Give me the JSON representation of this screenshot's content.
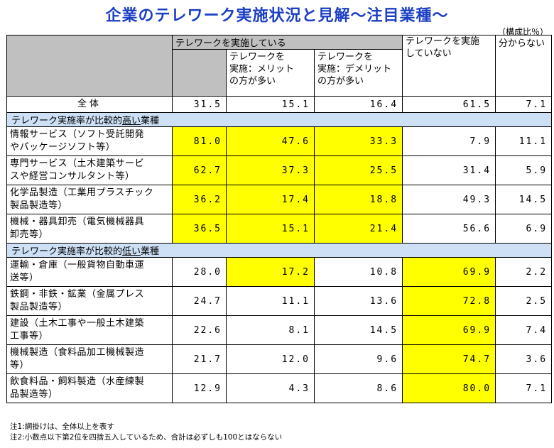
{
  "title": "企業のテレワーク実施状況と見解～注目業種～",
  "unit": "（構成比％）",
  "headers": {
    "implemented": "テレワークを実施している",
    "merit": [
      "テレワークを",
      "実施：メリット",
      "の方が多い"
    ],
    "demerit": [
      "テレワークを",
      "実施：デメリット",
      "の方が多い"
    ],
    "not_implemented": [
      "テレワークを実施",
      "していない"
    ],
    "unknown": "分からない"
  },
  "total": {
    "label": "全体",
    "values": [
      "31.5",
      "15.1",
      "16.4",
      "61.5",
      "7.1"
    ]
  },
  "sections": [
    {
      "title_pre": "テレワーク実施率が比較的",
      "title_u": "高い",
      "title_post": "業種",
      "rows": [
        {
          "label": [
            "情報サービス（ソフト受託開発",
            "やパッケージソフト等）"
          ],
          "values": [
            "81.0",
            "47.6",
            "33.3",
            "7.9",
            "11.1"
          ]
        },
        {
          "label": [
            "専門サービス（土木建築サービ",
            "スや経営コンサルタント等）"
          ],
          "values": [
            "62.7",
            "37.3",
            "25.5",
            "31.4",
            "5.9"
          ]
        },
        {
          "label": [
            "化学品製造（工業用プラスチック",
            "製品製造等）"
          ],
          "values": [
            "36.2",
            "17.4",
            "18.8",
            "49.3",
            "14.5"
          ]
        },
        {
          "label": [
            "機械・器具卸売（電気機械器具",
            "卸売等）"
          ],
          "values": [
            "36.5",
            "15.1",
            "21.4",
            "56.6",
            "6.9"
          ]
        }
      ]
    },
    {
      "title_pre": "テレワーク実施率が比較的",
      "title_u": "低い",
      "title_post": "業種",
      "rows": [
        {
          "label": [
            "運輸・倉庫（一般貨物自動車運",
            "送等）"
          ],
          "values": [
            "28.0",
            "17.2",
            "10.8",
            "69.9",
            "2.2"
          ]
        },
        {
          "label": [
            "鉄鋼・非鉄・鉱業（金属プレス",
            "製品製造等）"
          ],
          "values": [
            "24.7",
            "11.1",
            "13.6",
            "72.8",
            "2.5"
          ]
        },
        {
          "label": [
            "建設（土木工事や一般土木建築",
            "工事等）"
          ],
          "values": [
            "22.6",
            "8.1",
            "14.5",
            "69.9",
            "7.4"
          ]
        },
        {
          "label": [
            "機械製造（食料品加工機械製造",
            "等）"
          ],
          "values": [
            "21.7",
            "12.0",
            "9.6",
            "74.7",
            "3.6"
          ]
        },
        {
          "label": [
            "飲食料品・飼料製造（水産練製",
            "品製造等）"
          ],
          "values": [
            "12.9",
            "4.3",
            "8.6",
            "80.0",
            "7.1"
          ]
        }
      ]
    }
  ],
  "highlight_color": "#ffff00",
  "notes": [
    "注1:網掛けは、全体以上を表す",
    "注2:小数点以下第2位を四捨五入しているため、合計は必ずしも100とはならない"
  ]
}
